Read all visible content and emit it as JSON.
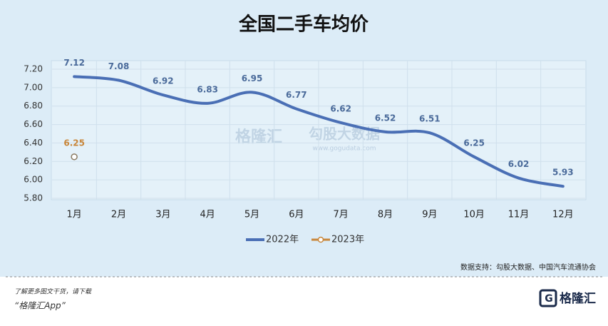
{
  "chart_data": {
    "type": "line",
    "title": "全国二手车均价",
    "categories": [
      "1月",
      "2月",
      "3月",
      "4月",
      "5月",
      "6月",
      "7月",
      "8月",
      "9月",
      "10月",
      "11月",
      "12月"
    ],
    "series": [
      {
        "name": "2022年",
        "color": "#4a6fb5",
        "values": [
          7.12,
          7.08,
          6.92,
          6.83,
          6.95,
          6.77,
          6.62,
          6.52,
          6.51,
          6.25,
          6.02,
          5.93
        ]
      },
      {
        "name": "2023年",
        "color": "#c8863a",
        "values": [
          6.25,
          null,
          null,
          null,
          null,
          null,
          null,
          null,
          null,
          null,
          null,
          null
        ]
      }
    ],
    "ylim": [
      5.8,
      7.2
    ],
    "yticks": [
      {
        "value": 5.8,
        "label": "5.80"
      },
      {
        "value": 6.0,
        "label": "6.00"
      },
      {
        "value": 6.2,
        "label": "6.20"
      },
      {
        "value": 6.4,
        "label": "6.40"
      },
      {
        "value": 6.6,
        "label": "6.60"
      },
      {
        "value": 6.8,
        "label": "6.80"
      },
      {
        "value": 7.0,
        "label": "7.00"
      },
      {
        "value": 7.2,
        "label": "7.20"
      }
    ],
    "grid": true,
    "legend": "bottom",
    "source": "数据支持：勾股大数据、中国汽车流通协会",
    "watermark": [
      "格隆汇",
      "勾股大数据",
      "www.gogudata.com"
    ]
  },
  "footer": {
    "line1": "了解更多图文干货，请下载",
    "line2": "“格隆汇App”",
    "logo": "格隆汇"
  }
}
